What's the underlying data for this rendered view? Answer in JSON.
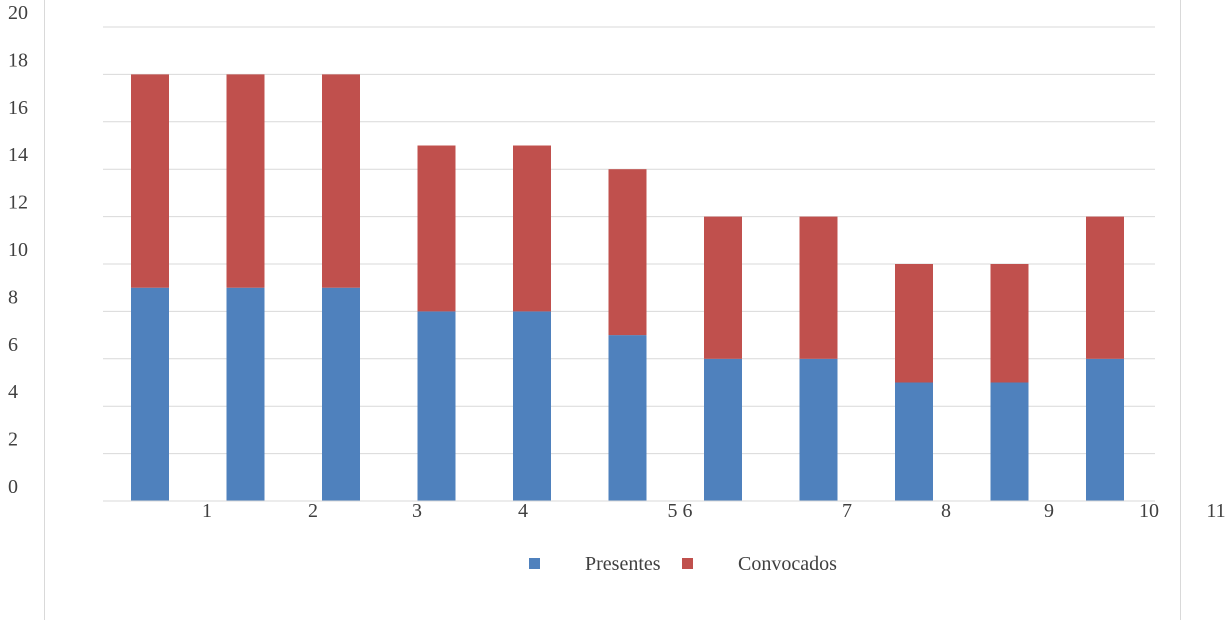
{
  "chart_data": {
    "type": "bar",
    "stacked": true,
    "categories": [
      "1",
      "2",
      "3",
      "4",
      "5",
      "6",
      "7",
      "8",
      "9",
      "10",
      "11"
    ],
    "x_tick_labels": [
      "1",
      "2",
      "3",
      "4",
      "5 6",
      "7",
      "8",
      "9",
      "10",
      "11"
    ],
    "series": [
      {
        "name": "Presentes",
        "color": "#4f81bd",
        "values": [
          9,
          9,
          9,
          8,
          8,
          7,
          6,
          6,
          5,
          5,
          6
        ]
      },
      {
        "name": "Convocados",
        "color": "#c0504d",
        "values": [
          9,
          9,
          9,
          7,
          7,
          7,
          6,
          6,
          5,
          5,
          6
        ]
      }
    ],
    "y_ticks": [
      0,
      2,
      4,
      6,
      8,
      10,
      12,
      14,
      16,
      18,
      20
    ],
    "ylim": [
      0,
      20
    ],
    "grid": true,
    "legend_position": "bottom",
    "legend": [
      "Presentes",
      "Convocados"
    ]
  }
}
